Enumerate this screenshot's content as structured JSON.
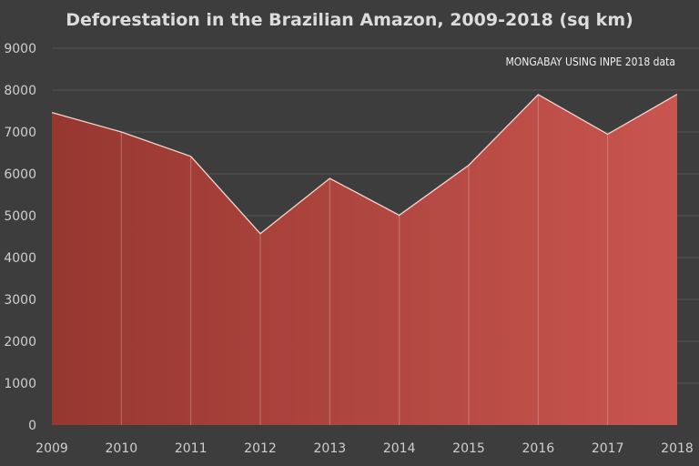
{
  "chart_data": {
    "type": "area",
    "title": "Deforestation in the Brazilian Amazon, 2009-2018 (sq km)",
    "annotation": "MONGABAY USING INPE 2018 data",
    "xlabel": "",
    "ylabel": "",
    "x": [
      "2009",
      "2010",
      "2011",
      "2012",
      "2013",
      "2014",
      "2015",
      "2016",
      "2017",
      "2018"
    ],
    "series": [
      {
        "values": [
          7464,
          7000,
          6418,
          4571,
          5891,
          5012,
          6207,
          7893,
          6947,
          7900
        ]
      }
    ],
    "ylim": [
      0,
      9000
    ],
    "yticks": [
      "0",
      "1000",
      "2000",
      "3000",
      "4000",
      "5000",
      "6000",
      "7000",
      "8000",
      "9000"
    ],
    "grid": true,
    "legend": "none",
    "colors": {
      "background": "#3d3d3d",
      "fill_start": "#963730",
      "fill_end": "#c9554f",
      "edge": "#f2d6d0",
      "grid": "#555555"
    }
  }
}
